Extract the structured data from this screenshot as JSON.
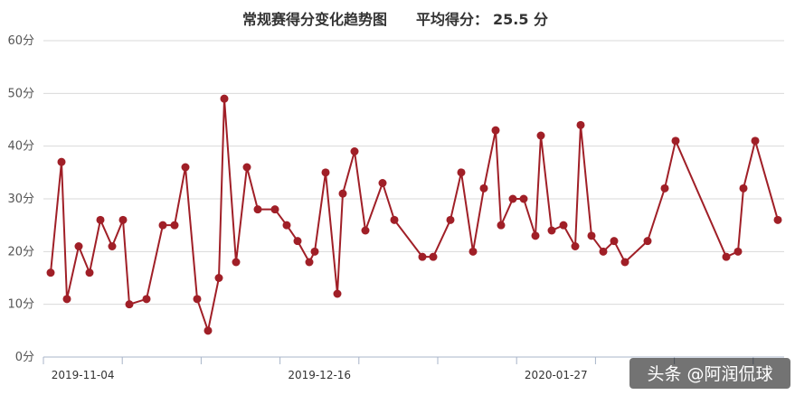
{
  "chart_data": {
    "type": "line",
    "title": "常规赛得分变化趋势图",
    "subtitle_label": "平均得分：",
    "subtitle_value": "25.5 分",
    "ylim": [
      0,
      60
    ],
    "yticks": [
      "0分",
      "10分",
      "20分",
      "30分",
      "40分",
      "50分",
      "60分"
    ],
    "xticks": [
      "2019-11-04",
      "2019-12-16",
      "2020-01-27"
    ],
    "grid": true,
    "legend": "none",
    "series": [
      {
        "color": "#a01f27",
        "values": [
          16,
          37,
          11,
          21,
          16,
          26,
          21,
          26,
          10,
          11,
          25,
          25,
          36,
          11,
          5,
          15,
          49,
          18,
          36,
          28,
          28,
          25,
          22,
          18,
          20,
          35,
          12,
          31,
          39,
          24,
          33,
          26,
          19,
          19,
          26,
          35,
          20,
          32,
          43,
          25,
          30,
          30,
          23,
          42,
          24,
          25,
          21,
          44,
          23,
          20,
          22,
          18,
          22,
          32,
          41,
          19,
          20,
          32,
          41,
          26
        ]
      }
    ]
  },
  "watermark": "头条 @阿润侃球"
}
